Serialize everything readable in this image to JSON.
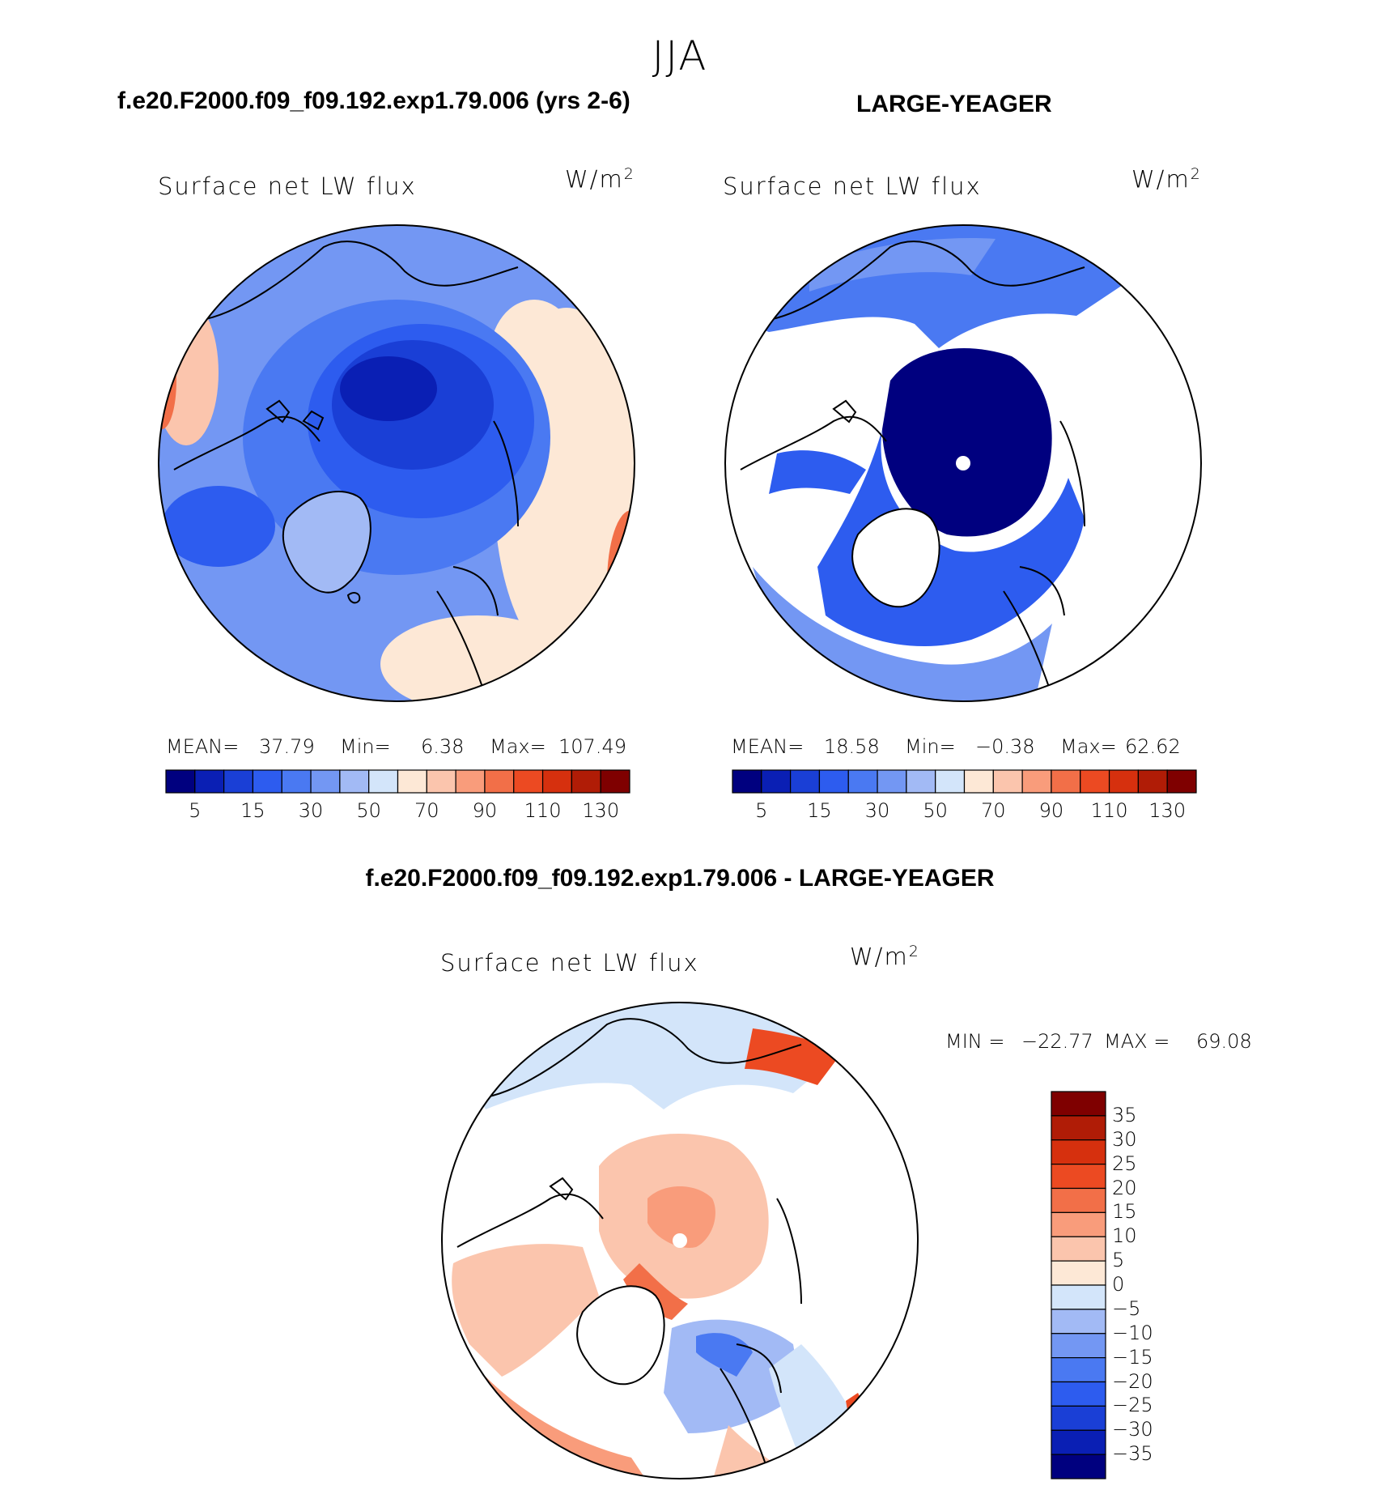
{
  "page_title": "JJA",
  "panels": [
    {
      "case_title": "f.e20.F2000.f09_f09.192.exp1.79.006 (yrs 2-6)",
      "plot_title": "Surface net LW flux",
      "units_base": "W/m",
      "units_exp": "2",
      "stats": {
        "mean_label": "MEAN=",
        "mean": "37.79",
        "min_label": "Min=",
        "min": "6.38",
        "max_label": "Max=",
        "max": "107.49"
      }
    },
    {
      "case_title": "LARGE-YEAGER",
      "plot_title": "Surface net LW flux",
      "units_base": "W/m",
      "units_exp": "2",
      "stats": {
        "mean_label": "MEAN=",
        "mean": "18.58",
        "min_label": "Min=",
        "min": "−0.38",
        "max_label": "Max=",
        "max": "62.62"
      }
    },
    {
      "case_title": "f.e20.F2000.f09_f09.192.exp1.79.006 - LARGE-YEAGER",
      "plot_title": "Surface net LW flux",
      "units_base": "W/m",
      "units_exp": "2",
      "stats": {
        "min_label": "MIN =",
        "min": "−22.77",
        "max_label": "MAX =",
        "max": "69.08"
      }
    }
  ],
  "colorbar_top": {
    "tick_labels": [
      "5",
      "15",
      "30",
      "50",
      "70",
      "90",
      "110",
      "130"
    ],
    "colors": [
      "#00007f",
      "#0a1fb4",
      "#1a3fd6",
      "#2d5cef",
      "#4a79f2",
      "#7397f3",
      "#a2baf5",
      "#d3e5fa",
      "#fde8d6",
      "#fbc5ad",
      "#f99c7b",
      "#f26f48",
      "#ec4a22",
      "#d6300e",
      "#b01c06",
      "#7f0000"
    ]
  },
  "colorbar_diff": {
    "tick_labels": [
      "35",
      "30",
      "25",
      "20",
      "15",
      "10",
      "5",
      "0",
      "−5",
      "−10",
      "−15",
      "−20",
      "−25",
      "−30",
      "−35"
    ],
    "colors": [
      "#7f0000",
      "#b01c06",
      "#d6300e",
      "#ec4a22",
      "#f26f48",
      "#f99c7b",
      "#fbc5ad",
      "#fde8d6",
      "#d3e5fa",
      "#a2baf5",
      "#7397f3",
      "#4a79f2",
      "#2d5cef",
      "#1a3fd6",
      "#0a1fb4",
      "#00007f"
    ]
  },
  "chart_data": [
    {
      "type": "heatmap",
      "title": "Surface net LW flux",
      "subtitle": "f.e20.F2000.f09_f09.192.exp1.79.006 (yrs 2-6)",
      "projection": "polar stereographic (Arctic)",
      "units": "W/m2",
      "mean": 37.79,
      "min": 6.38,
      "max": 107.49,
      "contour_levels": [
        5,
        10,
        15,
        20,
        30,
        40,
        50,
        60,
        70,
        80,
        90,
        100,
        110,
        120,
        130
      ]
    },
    {
      "type": "heatmap",
      "title": "Surface net LW flux",
      "subtitle": "LARGE-YEAGER",
      "projection": "polar stereographic (Arctic)",
      "units": "W/m2",
      "mean": 18.58,
      "min": -0.38,
      "max": 62.62,
      "contour_levels": [
        5,
        10,
        15,
        20,
        30,
        40,
        50,
        60,
        70,
        80,
        90,
        100,
        110,
        120,
        130
      ]
    },
    {
      "type": "heatmap",
      "title": "Surface net LW flux",
      "subtitle": "f.e20.F2000.f09_f09.192.exp1.79.006 - LARGE-YEAGER",
      "projection": "polar stereographic (Arctic)",
      "units": "W/m2",
      "min": -22.77,
      "max": 69.08,
      "contour_levels": [
        -35,
        -30,
        -25,
        -20,
        -15,
        -10,
        -5,
        0,
        5,
        10,
        15,
        20,
        25,
        30,
        35
      ]
    }
  ]
}
